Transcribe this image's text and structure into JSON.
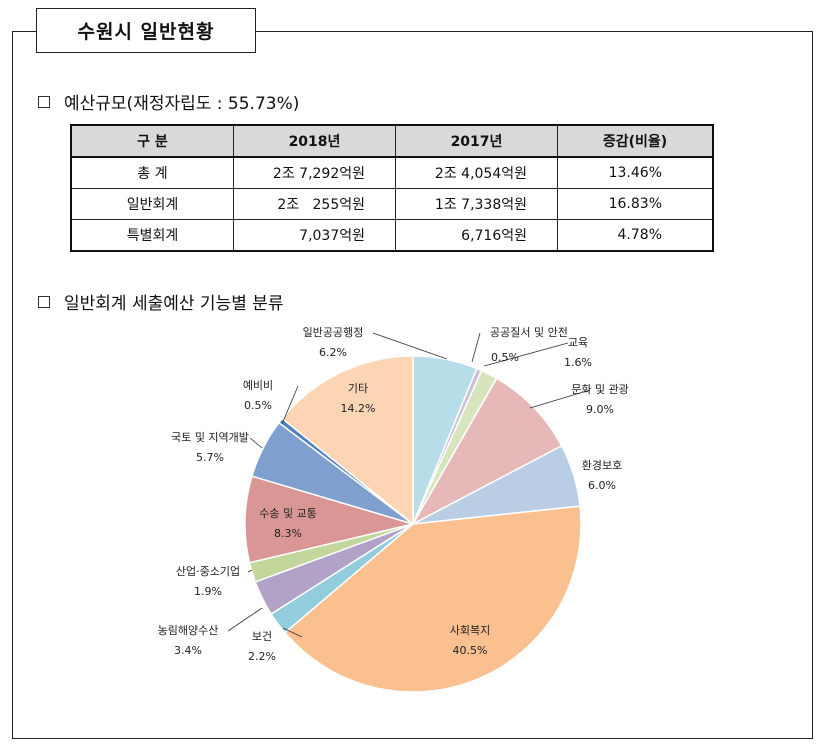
{
  "page_title": "수원시 일반현황",
  "budget": {
    "heading": "예산규모(재정자립도 : 55.73%)",
    "columns": [
      "구  분",
      "2018년",
      "2017년",
      "증감(비율)"
    ],
    "rows": [
      {
        "label": "총  계",
        "y2018": "2조 7,292억원",
        "y2017": "2조 4,054억원",
        "rate": "13.46%"
      },
      {
        "label": "일반회계",
        "y2018": "2조   255억원",
        "y2017": "1조 7,338억원",
        "rate": "16.83%"
      },
      {
        "label": "특별회계",
        "y2018": "7,037억원",
        "y2017": "6,716억원",
        "rate": "4.78%"
      }
    ]
  },
  "pie_section": {
    "heading": "일반회계 세출예산 기능별 분류"
  },
  "chart_data": {
    "type": "pie",
    "slices": [
      {
        "label": "일반공공행정",
        "value": 6.2,
        "pct": "6.2%",
        "color": "#b7dde8"
      },
      {
        "label": "공공질서 및 안전",
        "value": 0.5,
        "pct": "0.5%",
        "color": "#ccc1da"
      },
      {
        "label": "교육",
        "value": 1.6,
        "pct": "1.6%",
        "color": "#d7e4bd"
      },
      {
        "label": "문화 및 관광",
        "value": 9.0,
        "pct": "9.0%",
        "color": "#e6b9b8"
      },
      {
        "label": "환경보호",
        "value": 6.0,
        "pct": "6.0%",
        "color": "#b9cde5"
      },
      {
        "label": "사회복지",
        "value": 40.5,
        "pct": "40.5%",
        "color": "#fac090"
      },
      {
        "label": "보건",
        "value": 2.2,
        "pct": "2.2%",
        "color": "#93cddd"
      },
      {
        "label": "농림해양수산",
        "value": 3.4,
        "pct": "3.4%",
        "color": "#b3a2c7"
      },
      {
        "label": "산업·중소기업",
        "value": 1.9,
        "pct": "1.9%",
        "color": "#c3d69b"
      },
      {
        "label": "수송 및 교통",
        "value": 8.3,
        "pct": "8.3%",
        "color": "#d99694"
      },
      {
        "label": "국토 및 지역개발",
        "value": 5.7,
        "pct": "5.7%",
        "color": "#7f9fcf"
      },
      {
        "label": "예비비",
        "value": 0.5,
        "pct": "0.5%",
        "color": "#4f81bd"
      },
      {
        "label": "기타",
        "value": 14.2,
        "pct": "14.2%",
        "color": "#fcd5b5"
      }
    ]
  }
}
